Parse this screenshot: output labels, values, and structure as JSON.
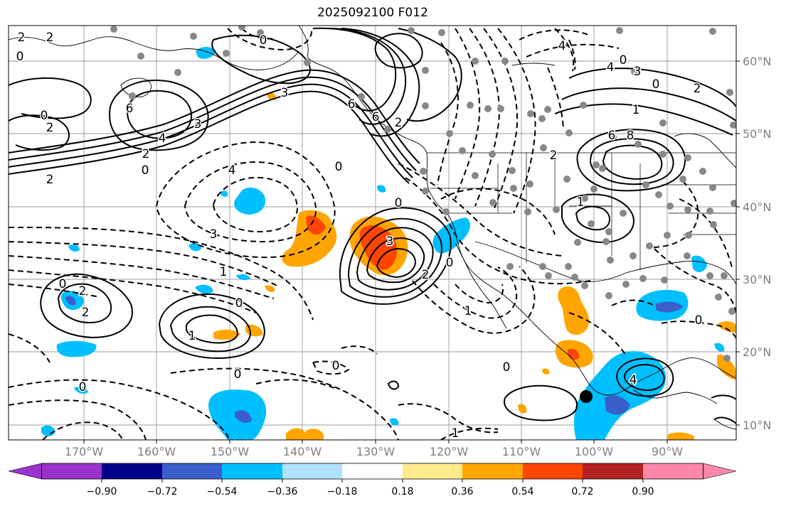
{
  "title": "2025092100 F012",
  "latitude_labels": [
    "60°N",
    "50°N",
    "40°N",
    "30°N",
    "20°N",
    "10°N"
  ],
  "longitude_labels": [
    "170°W",
    "160°W",
    "150°W",
    "140°W",
    "130°W",
    "120°W",
    "110°W",
    "100°W",
    "90°W"
  ],
  "colorbar": {
    "ticks": [
      "−0.90",
      "−0.72",
      "−0.54",
      "−0.36",
      "−0.18",
      "0.18",
      "0.36",
      "0.54",
      "0.72",
      "0.90"
    ],
    "colors": [
      "#9933cc",
      "#00008b",
      "#3a5fcd",
      "#00bfff",
      "#b0e2ff",
      "#ffffff",
      "#ffea8c",
      "#ffa500",
      "#ff4500",
      "#b22222",
      "#ff88aa"
    ]
  },
  "contour_labels": [
    "2",
    "2",
    "0",
    "3",
    "6",
    "2",
    "0",
    "4",
    "2",
    "2",
    "0",
    "3",
    "0",
    "6",
    "4",
    "0",
    "6",
    "2",
    "4",
    "3",
    "2",
    "0",
    "4",
    "2",
    "6",
    "1",
    "8",
    "1",
    "3",
    "1",
    "2",
    "0",
    "2",
    "1",
    "0",
    "0",
    "0",
    "3",
    "0",
    "0",
    "2",
    "1",
    "0",
    "0",
    "0",
    "1",
    "4",
    "0"
  ],
  "colors": {
    "map_border": "#000000",
    "grid": "#999999",
    "station": "#888888",
    "marker": "#000000"
  }
}
